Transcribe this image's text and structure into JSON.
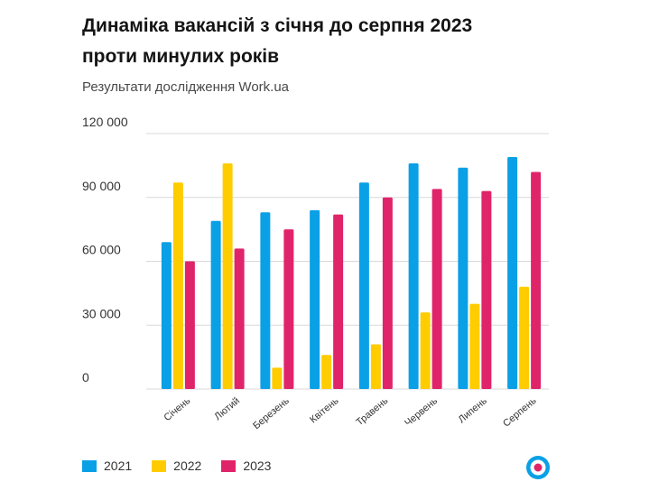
{
  "header": {
    "title_line1": "Динаміка вакансій з січня до серпня 2023",
    "title_line2": "проти минулих років",
    "subtitle": "Результати дослідження Work.ua"
  },
  "colors": {
    "s2021": "#0aa0e6",
    "s2022": "#ffcc00",
    "s2023": "#e0246a",
    "grid": "#d9d9d9",
    "axis_text": "#333333"
  },
  "logo": {
    "name": "workua-logo-icon"
  },
  "chart_data": {
    "type": "bar",
    "title": "Динаміка вакансій з січня до серпня 2023 проти минулих років",
    "subtitle": "Результати дослідження Work.ua",
    "xlabel": "",
    "ylabel": "",
    "ylim": [
      0,
      120000
    ],
    "yticks": [
      0,
      30000,
      60000,
      90000,
      120000
    ],
    "ytick_labels": [
      "0",
      "30 000",
      "60 000",
      "90 000",
      "120 000"
    ],
    "grid": true,
    "legend": "bottom-left",
    "categories": [
      "Січень",
      "Лютий",
      "Березень",
      "Квітень",
      "Травень",
      "Червень",
      "Липень",
      "Серпень"
    ],
    "series": [
      {
        "name": "2021",
        "color": "#0aa0e6",
        "values": [
          69000,
          79000,
          83000,
          84000,
          97000,
          106000,
          104000,
          109000
        ]
      },
      {
        "name": "2022",
        "color": "#ffcc00",
        "values": [
          97000,
          106000,
          10000,
          16000,
          21000,
          36000,
          40000,
          48000
        ]
      },
      {
        "name": "2023",
        "color": "#e0246a",
        "values": [
          60000,
          66000,
          75000,
          82000,
          90000,
          94000,
          93000,
          102000
        ]
      }
    ]
  }
}
